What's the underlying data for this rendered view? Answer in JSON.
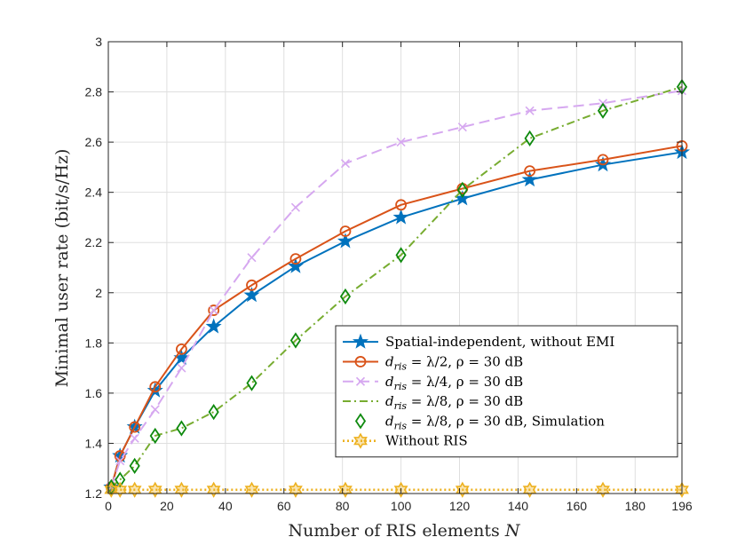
{
  "chart_data": {
    "type": "line",
    "title": "",
    "xlabel": "Number of RIS elements",
    "xlabel_var": "N",
    "ylabel": "Minimal user rate (bit/s/Hz)",
    "xlim": [
      0,
      196
    ],
    "ylim": [
      1.2,
      3.0
    ],
    "xticks": [
      0,
      20,
      40,
      60,
      80,
      100,
      120,
      140,
      160,
      180,
      196
    ],
    "yticks": [
      1.2,
      1.4,
      1.6,
      1.8,
      2,
      2.2,
      2.4,
      2.6,
      2.8,
      3
    ],
    "grid": true,
    "legend_position": "bottom-right",
    "series": [
      {
        "name": "Spatial-independent, without EMI",
        "color": "#0072BD",
        "style": "solid",
        "marker": "star",
        "x": [
          1,
          4,
          9,
          16,
          25,
          36,
          49,
          64,
          81,
          100,
          121,
          144,
          169,
          196
        ],
        "y": [
          1.225,
          1.35,
          1.465,
          1.61,
          1.74,
          1.865,
          1.99,
          2.105,
          2.205,
          2.3,
          2.375,
          2.45,
          2.51,
          2.56
        ]
      },
      {
        "name": "d_ris = λ/2, ρ = 30 dB",
        "legend": {
          "var": "d",
          "sub": "ris",
          "rest": " = λ/2, ρ = 30 dB"
        },
        "color": "#D95319",
        "style": "solid",
        "marker": "circle",
        "x": [
          1,
          4,
          9,
          16,
          25,
          36,
          49,
          64,
          81,
          100,
          121,
          144,
          169,
          196
        ],
        "y": [
          1.225,
          1.35,
          1.465,
          1.625,
          1.775,
          1.93,
          2.03,
          2.135,
          2.245,
          2.35,
          2.415,
          2.485,
          2.53,
          2.585
        ]
      },
      {
        "name": "d_ris = λ/4, ρ = 30 dB",
        "legend": {
          "var": "d",
          "sub": "ris",
          "rest": " = λ/4, ρ = 30 dB"
        },
        "color": "#D6A8F0",
        "style": "dashed",
        "marker": "x",
        "x": [
          1,
          4,
          9,
          16,
          25,
          36,
          49,
          64,
          81,
          100,
          121,
          144,
          169,
          196
        ],
        "y": [
          1.225,
          1.33,
          1.42,
          1.535,
          1.7,
          1.93,
          2.14,
          2.34,
          2.515,
          2.6,
          2.66,
          2.725,
          2.755,
          2.805
        ]
      },
      {
        "name": "d_ris = λ/8, ρ = 30 dB",
        "legend": {
          "var": "d",
          "sub": "ris",
          "rest": " = λ/8, ρ = 30 dB"
        },
        "color": "#77AC30",
        "style": "dashdot",
        "marker": "none",
        "x": [
          1,
          4,
          9,
          16,
          25,
          36,
          49,
          64,
          81,
          100,
          121,
          144,
          169,
          196
        ],
        "y": [
          1.225,
          1.255,
          1.31,
          1.43,
          1.46,
          1.525,
          1.64,
          1.81,
          1.985,
          2.15,
          2.41,
          2.615,
          2.725,
          2.82
        ]
      },
      {
        "name": "d_ris = λ/8, ρ = 30 dB, Simulation",
        "legend": {
          "var": "d",
          "sub": "ris",
          "rest": " = λ/8, ρ = 30 dB, Simulation"
        },
        "color": "#0E8A0E",
        "style": "none",
        "marker": "diamond",
        "x": [
          1,
          4,
          9,
          16,
          25,
          36,
          49,
          64,
          81,
          100,
          121,
          144,
          169,
          196
        ],
        "y": [
          1.225,
          1.255,
          1.31,
          1.43,
          1.46,
          1.525,
          1.64,
          1.81,
          1.985,
          2.15,
          2.41,
          2.615,
          2.725,
          2.82
        ]
      },
      {
        "name": "Without RIS",
        "color": "#EDB120",
        "style": "dotted",
        "marker": "hexagram",
        "x": [
          1,
          4,
          9,
          16,
          25,
          36,
          49,
          64,
          81,
          100,
          121,
          144,
          169,
          196
        ],
        "y": [
          1.215,
          1.215,
          1.215,
          1.215,
          1.215,
          1.215,
          1.215,
          1.215,
          1.215,
          1.215,
          1.215,
          1.215,
          1.215,
          1.215
        ]
      }
    ]
  }
}
